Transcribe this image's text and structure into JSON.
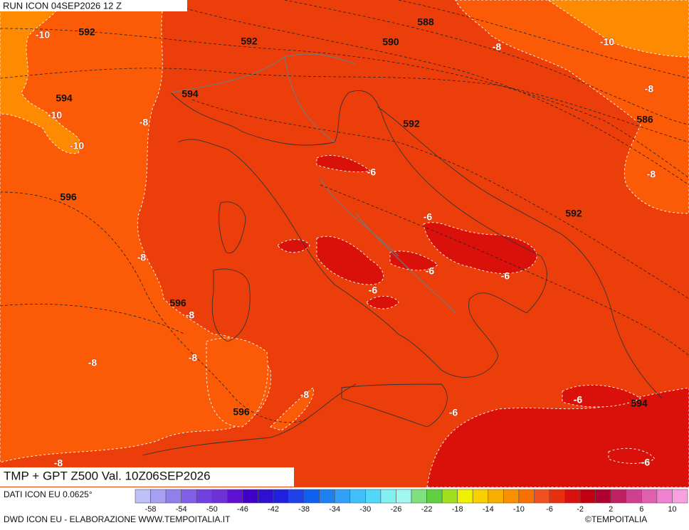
{
  "header": {
    "run": "RUN ICON 04SEP2026 12 Z"
  },
  "map": {
    "title": "TMP + GPT Z500 Val. 10Z06SEP2026",
    "temperature_labels": [
      -10,
      -10,
      -10,
      -8,
      -6,
      -8,
      -10,
      -8,
      -8,
      -6,
      -8,
      -6,
      -6,
      -6,
      -8,
      -8,
      -8,
      -8,
      -6,
      -6,
      -8,
      -6
    ],
    "geopotential_labels": [
      592,
      592,
      588,
      590,
      594,
      594,
      592,
      586,
      596,
      592,
      596,
      596,
      594
    ]
  },
  "colorbar": {
    "colors": [
      "#c0c0f8",
      "#a8a0f0",
      "#9080ec",
      "#8060e8",
      "#7040e0",
      "#7030d8",
      "#6010d0",
      "#4000c8",
      "#3010d0",
      "#2020e0",
      "#2040e8",
      "#1060f0",
      "#2080f0",
      "#30a0f8",
      "#40c0f8",
      "#50d8f8",
      "#80f0f0",
      "#a0f8f0",
      "#80e080",
      "#60d040",
      "#a0e020",
      "#f0f000",
      "#f8d000",
      "#f8b000",
      "#f89000",
      "#f87000",
      "#f05020",
      "#e83010",
      "#d81010",
      "#c00010",
      "#b00030",
      "#c02060",
      "#d04090",
      "#e060b0",
      "#f080d0",
      "#f8a0e0"
    ],
    "labels": [
      -58,
      -54,
      -50,
      -46,
      -42,
      -38,
      -34,
      -30,
      -26,
      -22,
      -18,
      -14,
      -10,
      -6,
      -2,
      2,
      6,
      10
    ]
  },
  "footer": {
    "source": "DATI ICON EU 0.0625°",
    "credit": "DWD ICON EU - ELABORAZIONE WWW.TEMPOITALIA.IT",
    "copyright": "©TEMPOITALIA"
  }
}
